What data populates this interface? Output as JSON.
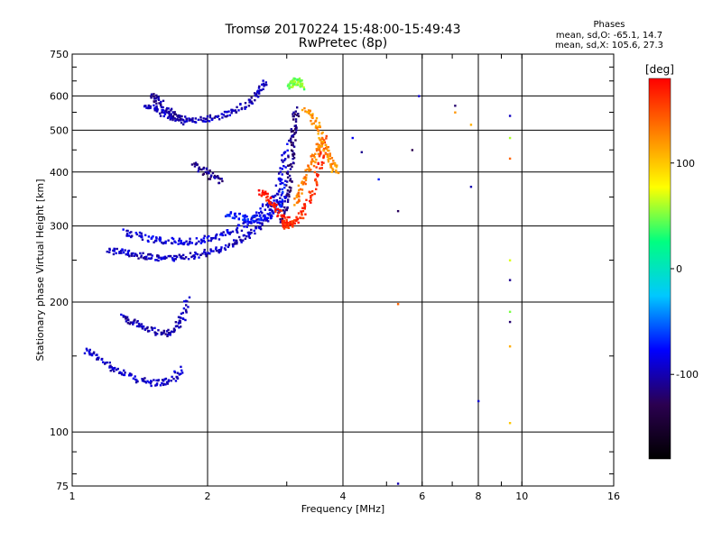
{
  "header": {
    "title": "Tromsø 20170224 15:48:00-15:49:43",
    "subtitle": "RwPretec (8p)",
    "stats_title": "Phases",
    "stats_line1": "mean, sd,O: -65.1, 14.7",
    "stats_line2": "mean, sd,X: 105.6, 27.3"
  },
  "chart_data": {
    "type": "scatter",
    "title": "Tromsø 20170224 15:48:00-15:49:43",
    "subtitle": "RwPretec (8p)",
    "xlabel": "Frequency [MHz]",
    "ylabel": "Stationary phase Virtual Height [km]",
    "x_scale": "log",
    "y_scale": "log",
    "xlim": [
      1,
      16
    ],
    "ylim": [
      75,
      750
    ],
    "x_ticks": [
      1,
      2,
      4,
      6,
      8,
      10,
      16
    ],
    "y_ticks": [
      75,
      100,
      200,
      300,
      400,
      500,
      600,
      750
    ],
    "grid": true,
    "colorbar": {
      "label": "[deg]",
      "range": [
        -180,
        180
      ],
      "ticks": [
        -100,
        0,
        100
      ],
      "colors": [
        "#000000",
        "#2b0050",
        "#0000ff",
        "#00c8ff",
        "#00ff80",
        "#ffff00",
        "#ff8000",
        "#ff0000"
      ]
    },
    "series": [
      {
        "traces": [
          {
            "x": [
              1.07,
              1.12,
              1.2,
              1.28,
              1.38,
              1.48,
              1.58,
              1.68,
              1.75
            ],
            "y": [
              155,
              150,
              143,
              138,
              133,
              130,
              130,
              133,
              140
            ],
            "phase": -95
          },
          {
            "x": [
              1.3,
              1.35,
              1.42,
              1.52,
              1.62,
              1.7,
              1.76,
              1.8
            ],
            "y": [
              185,
              180,
              176,
              172,
              168,
              175,
              185,
              205
            ],
            "phase": -100
          }
        ]
      },
      {
        "traces": [
          {
            "x": [
              1.2,
              1.28,
              1.36,
              1.45,
              1.55,
              1.65,
              1.78,
              1.92,
              2.05,
              2.2,
              2.35,
              2.5,
              2.65,
              2.78,
              2.88
            ],
            "y": [
              262,
              262,
              258,
              255,
              253,
              253,
              255,
              258,
              262,
              268,
              278,
              290,
              305,
              325,
              350
            ],
            "phase": -95
          },
          {
            "x": [
              1.3,
              1.4,
              1.5,
              1.6,
              1.72,
              1.85,
              2.0,
              2.15,
              2.3,
              2.45,
              2.6,
              2.75,
              2.88,
              2.95,
              3.0
            ],
            "y": [
              290,
              285,
              280,
              278,
              276,
              276,
              280,
              285,
              293,
              305,
              320,
              340,
              370,
              410,
              470
            ],
            "phase": -88
          },
          {
            "x": [
              2.9,
              2.96,
              3.02,
              3.05,
              3.08,
              3.1,
              3.12,
              3.15
            ],
            "y": [
              310,
              330,
              360,
              400,
              440,
              480,
              520,
              560
            ],
            "phase": -115
          },
          {
            "x": [
              2.2,
              2.35,
              2.5,
              2.65,
              2.8,
              2.92,
              3.0
            ],
            "y": [
              320,
              316,
              312,
              310,
              320,
              340,
              380
            ],
            "phase": -75
          }
        ]
      },
      {
        "traces": [
          {
            "x": [
              1.45,
              1.52,
              1.6,
              1.7,
              1.8,
              1.92,
              2.05,
              2.2,
              2.35,
              2.5,
              2.6,
              2.7
            ],
            "y": [
              575,
              560,
              545,
              535,
              530,
              530,
              535,
              545,
              560,
              590,
              620,
              650
            ],
            "phase": -98
          },
          {
            "x": [
              1.5,
              1.55,
              1.62,
              1.7,
              1.78
            ],
            "y": [
              600,
              585,
              560,
              540,
              520
            ],
            "phase": -105
          },
          {
            "x": [
              1.85,
              1.95,
              2.05,
              2.15
            ],
            "y": [
              420,
              405,
              390,
              380
            ],
            "phase": -110
          }
        ]
      },
      {
        "traces": [
          {
            "x": [
              2.95,
              3.0,
              3.08,
              3.18,
              3.3,
              3.42,
              3.52,
              3.6,
              3.65
            ],
            "y": [
              305,
              300,
              303,
              312,
              330,
              360,
              400,
              440,
              480
            ],
            "phase": 160
          },
          {
            "x": [
              3.12,
              3.2,
              3.3,
              3.4,
              3.5,
              3.58
            ],
            "y": [
              340,
              360,
              390,
              420,
              450,
              470
            ],
            "phase": 130
          },
          {
            "x": [
              2.6,
              2.7,
              2.8,
              2.9,
              3.0
            ],
            "y": [
              360,
              350,
              335,
              320,
              310
            ],
            "phase": 170
          }
        ]
      },
      {
        "traces": [
          {
            "x": [
              3.05,
              3.1,
              3.15,
              3.2,
              3.25
            ],
            "y": [
              630,
              640,
              650,
              645,
              630
            ],
            "phase": 50
          }
        ]
      },
      {
        "traces": [
          {
            "x": [
              3.3,
              3.4,
              3.5,
              3.6,
              3.7,
              3.8,
              3.85
            ],
            "y": [
              560,
              540,
              510,
              470,
              440,
              420,
              400
            ],
            "phase": 120
          }
        ]
      },
      {
        "points": [
          {
            "x": 9.4,
            "y": 540,
            "phase": -95
          },
          {
            "x": 9.4,
            "y": 480,
            "phase": 60
          },
          {
            "x": 9.4,
            "y": 430,
            "phase": 140
          },
          {
            "x": 9.4,
            "y": 250,
            "phase": 70
          },
          {
            "x": 9.4,
            "y": 225,
            "phase": -110
          },
          {
            "x": 9.4,
            "y": 190,
            "phase": 50
          },
          {
            "x": 9.4,
            "y": 180,
            "phase": -120
          },
          {
            "x": 9.4,
            "y": 158,
            "phase": 110
          },
          {
            "x": 9.4,
            "y": 105,
            "phase": 100
          },
          {
            "x": 7.7,
            "y": 370,
            "phase": -100
          },
          {
            "x": 7.7,
            "y": 515,
            "phase": 110
          },
          {
            "x": 7.1,
            "y": 570,
            "phase": -120
          },
          {
            "x": 7.1,
            "y": 550,
            "phase": 120
          },
          {
            "x": 5.7,
            "y": 450,
            "phase": -130
          },
          {
            "x": 5.3,
            "y": 325,
            "phase": -125
          },
          {
            "x": 5.3,
            "y": 198,
            "phase": 140
          },
          {
            "x": 5.3,
            "y": 76,
            "phase": -100
          },
          {
            "x": 4.4,
            "y": 445,
            "phase": -110
          },
          {
            "x": 4.2,
            "y": 480,
            "phase": -80
          },
          {
            "x": 4.8,
            "y": 385,
            "phase": -70
          },
          {
            "x": 5.9,
            "y": 600,
            "phase": -90
          },
          {
            "x": 8.0,
            "y": 118,
            "phase": -90
          }
        ]
      }
    ]
  }
}
